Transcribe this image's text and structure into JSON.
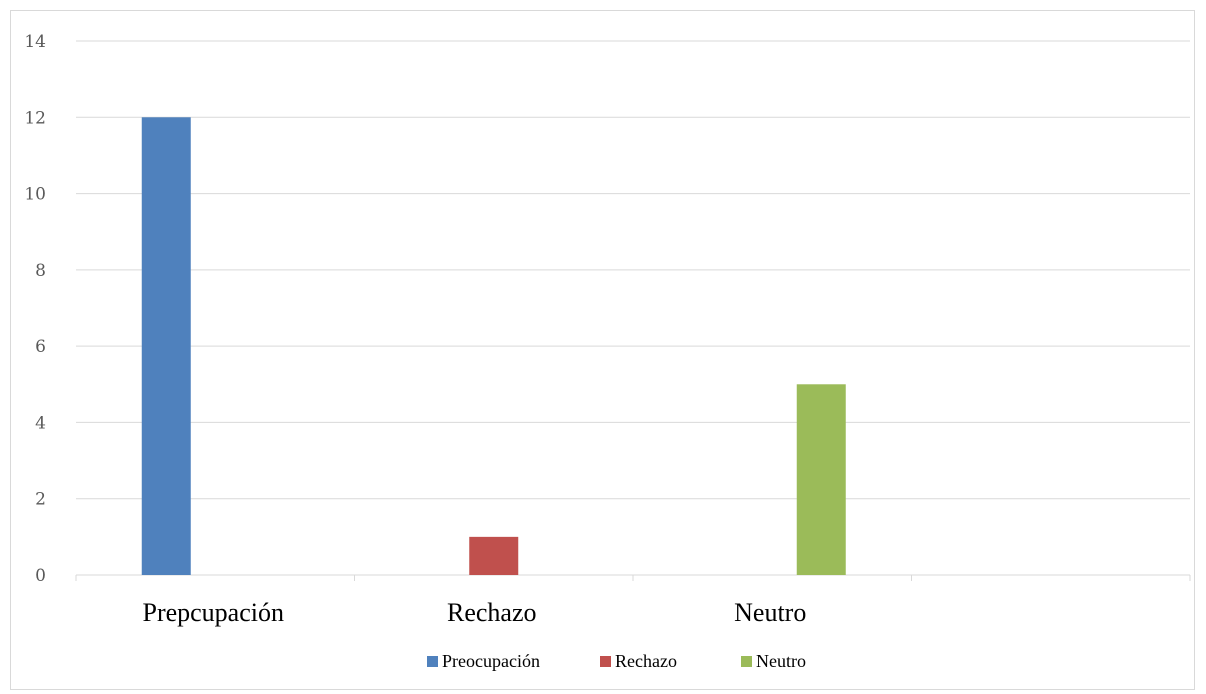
{
  "chart_data": {
    "type": "bar",
    "categories": [
      "Prepcupación",
      "Rechazo",
      "Neutro"
    ],
    "series": [
      {
        "name": "Preocupación",
        "values": [
          12,
          null,
          null
        ],
        "color": "#4f81bd"
      },
      {
        "name": "Rechazo",
        "values": [
          null,
          1,
          null
        ],
        "color": "#c0504d"
      },
      {
        "name": "Neutro",
        "values": [
          null,
          null,
          5
        ],
        "color": "#9bbb59"
      }
    ],
    "ylim": [
      0,
      14
    ],
    "yticks": [
      0,
      2,
      4,
      6,
      8,
      10,
      12,
      14
    ],
    "grid": true,
    "legend": "bottom",
    "title": "",
    "xlabel": "",
    "ylabel": ""
  }
}
